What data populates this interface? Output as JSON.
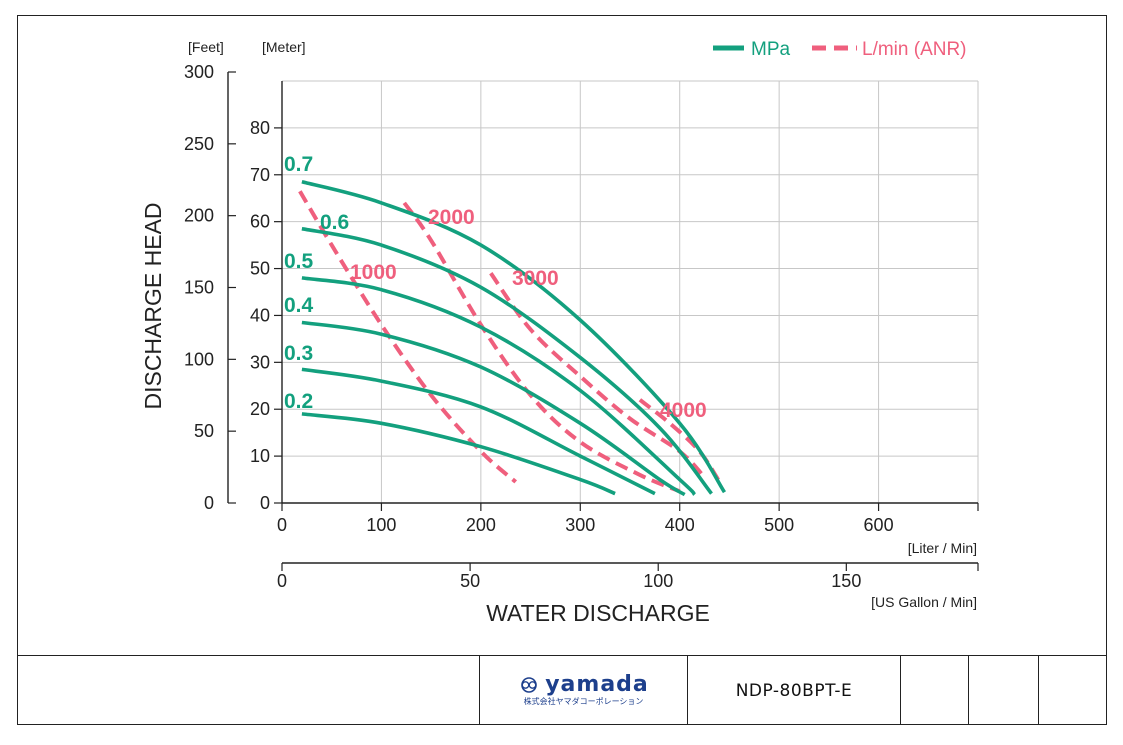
{
  "chart_data": {
    "type": "line",
    "title": "",
    "ylabel": "DISCHARGE HEAD",
    "xlabel": "WATER DISCHARGE",
    "y_unit_feet": "[Feet]",
    "y_unit_meter": "[Meter]",
    "x_unit_liter": "[Liter / Min]",
    "x_unit_gallon": "[US Gallon / Min]",
    "xlim": [
      0,
      700
    ],
    "ylim_meter": [
      0,
      90
    ],
    "feet_axis_max": 300,
    "gallon_axis_max": 185,
    "x_ticks": [
      "0",
      "100",
      "200",
      "300",
      "400",
      "500",
      "600"
    ],
    "x_tick_values": [
      0,
      100,
      200,
      300,
      400,
      500,
      600
    ],
    "meter_ticks": [
      "0",
      "10",
      "20",
      "30",
      "40",
      "50",
      "60",
      "70",
      "80"
    ],
    "meter_tick_values": [
      0,
      10,
      20,
      30,
      40,
      50,
      60,
      70,
      80
    ],
    "feet_ticks": [
      "0",
      "50",
      "100",
      "150",
      "200",
      "250",
      "300"
    ],
    "feet_tick_values": [
      0,
      50,
      100,
      150,
      200,
      250,
      300
    ],
    "gallon_ticks": [
      "0",
      "50",
      "100",
      "150"
    ],
    "gallon_tick_values": [
      0,
      50,
      100,
      150
    ],
    "legend": {
      "position": "top-right",
      "entries": [
        {
          "label": "MPa",
          "color": "#13a07e",
          "style": "solid"
        },
        {
          "label": "L/min (ANR)",
          "color": "#ef5f7d",
          "style": "dashed"
        }
      ]
    },
    "pressure_series": [
      {
        "label": "0.7",
        "points": [
          [
            20,
            68.5
          ],
          [
            100,
            64
          ],
          [
            200,
            55
          ],
          [
            300,
            39
          ],
          [
            400,
            17
          ],
          [
            445,
            2.3
          ]
        ]
      },
      {
        "label": "0.6",
        "points": [
          [
            20,
            58.5
          ],
          [
            100,
            55
          ],
          [
            200,
            46
          ],
          [
            300,
            31
          ],
          [
            380,
            16
          ],
          [
            432,
            2
          ]
        ]
      },
      {
        "label": "0.5",
        "points": [
          [
            20,
            48
          ],
          [
            100,
            45.5
          ],
          [
            200,
            37.5
          ],
          [
            300,
            24
          ],
          [
            400,
            5
          ],
          [
            415,
            1.8
          ]
        ]
      },
      {
        "label": "0.4",
        "points": [
          [
            20,
            38.5
          ],
          [
            100,
            36
          ],
          [
            200,
            29
          ],
          [
            300,
            17
          ],
          [
            380,
            5
          ],
          [
            405,
            1.8
          ]
        ]
      },
      {
        "label": "0.3",
        "points": [
          [
            20,
            28.5
          ],
          [
            100,
            26
          ],
          [
            200,
            20.5
          ],
          [
            300,
            10
          ],
          [
            375,
            2
          ]
        ]
      },
      {
        "label": "0.2",
        "points": [
          [
            20,
            19
          ],
          [
            100,
            17
          ],
          [
            200,
            12
          ],
          [
            300,
            5
          ],
          [
            335,
            2
          ]
        ]
      }
    ],
    "air_series": [
      {
        "label": "1000",
        "points": [
          [
            18,
            66.5
          ],
          [
            50,
            55
          ],
          [
            100,
            38
          ],
          [
            150,
            23
          ],
          [
            200,
            11
          ],
          [
            235,
            4.5
          ]
        ]
      },
      {
        "label": "2000",
        "points": [
          [
            123,
            64
          ],
          [
            150,
            56
          ],
          [
            200,
            38
          ],
          [
            250,
            23
          ],
          [
            300,
            13
          ],
          [
            360,
            6
          ],
          [
            400,
            2.5
          ]
        ]
      },
      {
        "label": "3000",
        "points": [
          [
            210,
            49
          ],
          [
            250,
            37
          ],
          [
            300,
            27
          ],
          [
            350,
            18
          ],
          [
            400,
            11
          ],
          [
            425,
            5.5
          ]
        ]
      },
      {
        "label": "4000",
        "points": [
          [
            360,
            22
          ],
          [
            390,
            17
          ],
          [
            420,
            11
          ],
          [
            440,
            4.5
          ]
        ]
      }
    ],
    "grid": true
  },
  "footer": {
    "logo_word": "yamada",
    "logo_sub": "株式会社ヤマダコーポレーション",
    "model": "NDP-80BPT-E"
  },
  "colors": {
    "pressure": "#13a07e",
    "air": "#ef5f7d",
    "grid": "#c7c7c7",
    "axis": "#222222"
  }
}
